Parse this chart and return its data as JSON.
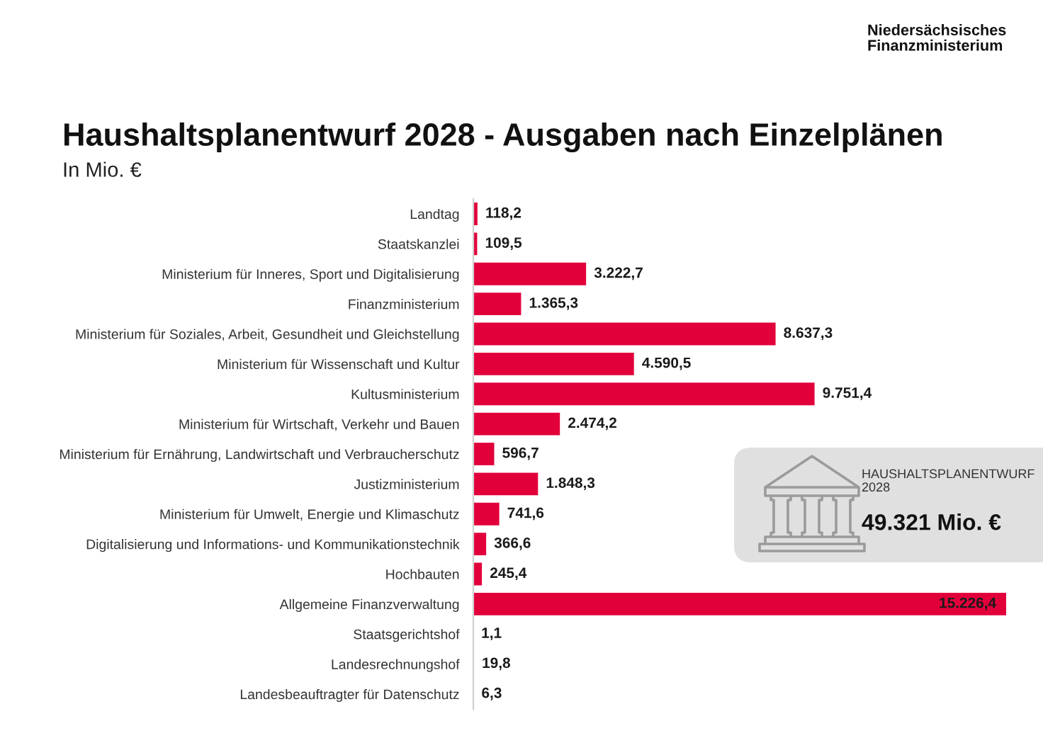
{
  "chart_data": {
    "type": "bar",
    "orientation": "horizontal",
    "title": "Haushaltsplanentwurf 2028 - Ausgaben nach Einzelplänen",
    "subtitle": "In Mio. €",
    "categories": [
      "Landtag",
      "Staatskanzlei",
      "Ministerium für Inneres, Sport und Digitalisierung",
      "Finanzministerium",
      "Ministerium für Soziales, Arbeit, Gesundheit und Gleichstellung",
      "Ministerium für Wissenschaft und Kultur",
      "Kultusministerium",
      "Ministerium für Wirtschaft, Verkehr und Bauen",
      "Ministerium für Ernährung, Landwirtschaft und Verbraucherschutz",
      "Justizministerium",
      "Ministerium für Umwelt, Energie und Klimaschutz",
      "Digitalisierung und Informations- und Kommunikationstechnik",
      "Hochbauten",
      "Allgemeine Finanzverwaltung",
      "Staatsgerichtshof",
      "Landesrechnungshof",
      "Landesbeauftragter für Datenschutz"
    ],
    "values": [
      118.2,
      109.5,
      3222.7,
      1365.3,
      8637.3,
      4590.5,
      9751.4,
      2474.2,
      596.7,
      1848.3,
      741.6,
      366.6,
      245.4,
      15226.4,
      1.1,
      19.8,
      6.3
    ],
    "value_labels": [
      "118,2",
      "109,5",
      "3.222,7",
      "1.365,3",
      "8.637,3",
      "4.590,5",
      "9.751,4",
      "2.474,2",
      "596,7",
      "1.848,3",
      "741,6",
      "366,6",
      "245,4",
      "15.226,4",
      "1,1",
      "19,8",
      "6,3"
    ],
    "color": "#e2003b",
    "tick_labels": "y",
    "annotations": [
      "Niedersächsisches Finanzministerium",
      "HAUSHALTSPLANENTWURF 2028",
      "49.321 Mio. €"
    ]
  }
}
